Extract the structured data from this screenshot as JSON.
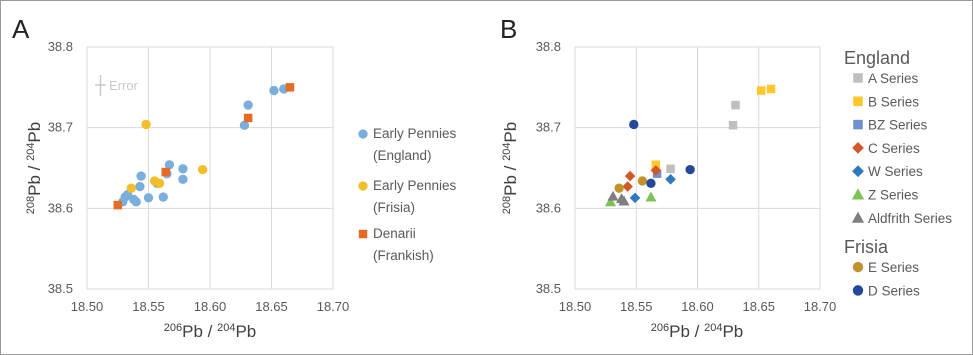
{
  "chart_data": [
    {
      "panel_label": "A",
      "type": "scatter",
      "xlabel": {
        "iso1": "206",
        "el1": "Pb / ",
        "iso2": "204",
        "el2": "Pb"
      },
      "ylabel": {
        "iso1": "208",
        "el1": "Pb / ",
        "iso2": "204",
        "el2": "Pb"
      },
      "xlim": [
        18.5,
        18.7
      ],
      "ylim": [
        38.5,
        38.8
      ],
      "x_ticks": [
        "18.50",
        "18.55",
        "18.60",
        "18.65",
        "18.70"
      ],
      "y_ticks": [
        "38.5",
        "38.6",
        "38.7",
        "38.8"
      ],
      "grid": true,
      "error_label": "Error",
      "legend_position": "right",
      "series": [
        {
          "name": [
            "Early Pennies",
            "(England)"
          ],
          "color": "#7aaedc",
          "marker": "circle",
          "points": [
            [
              18.529,
              38.608
            ],
            [
              18.531,
              38.614
            ],
            [
              18.533,
              38.617
            ],
            [
              18.538,
              38.611
            ],
            [
              18.54,
              38.608
            ],
            [
              18.543,
              38.627
            ],
            [
              18.544,
              38.64
            ],
            [
              18.55,
              38.613
            ],
            [
              18.557,
              38.631
            ],
            [
              18.562,
              38.614
            ],
            [
              18.565,
              38.643
            ],
            [
              18.567,
              38.654
            ],
            [
              18.578,
              38.636
            ],
            [
              18.578,
              38.649
            ],
            [
              18.628,
              38.703
            ],
            [
              18.631,
              38.728
            ],
            [
              18.652,
              38.746
            ],
            [
              18.66,
              38.748
            ]
          ]
        },
        {
          "name": [
            "Early Pennies",
            "(Frisia)"
          ],
          "color": "#f2be2a",
          "marker": "circle",
          "points": [
            [
              18.548,
              38.704
            ],
            [
              18.536,
              38.625
            ],
            [
              18.555,
              38.634
            ],
            [
              18.559,
              38.631
            ],
            [
              18.594,
              38.648
            ]
          ]
        },
        {
          "name": [
            "Denarii",
            "(Frankish)"
          ],
          "color": "#e46c24",
          "marker": "square",
          "points": [
            [
              18.525,
              38.604
            ],
            [
              18.564,
              38.645
            ],
            [
              18.631,
              38.712
            ],
            [
              18.665,
              38.75
            ]
          ]
        }
      ]
    },
    {
      "panel_label": "B",
      "type": "scatter",
      "xlabel": {
        "iso1": "206",
        "el1": "Pb / ",
        "iso2": "204",
        "el2": "Pb"
      },
      "ylabel": {
        "iso1": "208",
        "el1": "Pb / ",
        "iso2": "204",
        "el2": "Pb"
      },
      "xlim": [
        18.5,
        18.7
      ],
      "ylim": [
        38.5,
        38.8
      ],
      "x_ticks": [
        "18.50",
        "18.55",
        "18.60",
        "18.65",
        "18.70"
      ],
      "y_ticks": [
        "38.5",
        "38.6",
        "38.7",
        "38.8"
      ],
      "grid": true,
      "legend_position": "right",
      "legend_groups": [
        {
          "title": "England",
          "series": [
            "A Series",
            "B Series",
            "BZ Series",
            "C Series",
            "W Series",
            "Z Series",
            "Aldfrith Series"
          ]
        },
        {
          "title": "Frisia",
          "series": [
            "E Series",
            "D Series"
          ]
        }
      ],
      "series": [
        {
          "name": "A Series",
          "color": "#bfbfbf",
          "marker": "square",
          "points": [
            [
              18.578,
              38.649
            ],
            [
              18.629,
              38.703
            ],
            [
              18.631,
              38.728
            ]
          ]
        },
        {
          "name": "B Series",
          "color": "#ffc729",
          "marker": "square",
          "points": [
            [
              18.566,
              38.654
            ],
            [
              18.652,
              38.746
            ],
            [
              18.66,
              38.748
            ]
          ]
        },
        {
          "name": "BZ Series",
          "color": "#6f8fcf",
          "marker": "square",
          "points": [
            [
              18.567,
              38.643
            ]
          ]
        },
        {
          "name": "C Series",
          "color": "#d2582a",
          "marker": "diamond",
          "points": [
            [
              18.543,
              38.627
            ],
            [
              18.545,
              38.64
            ],
            [
              18.566,
              38.647
            ]
          ]
        },
        {
          "name": "W Series",
          "color": "#2e79bf",
          "marker": "diamond",
          "points": [
            [
              18.549,
              38.613
            ],
            [
              18.578,
              38.636
            ]
          ]
        },
        {
          "name": "Z Series",
          "color": "#7ec256",
          "marker": "triangle",
          "points": [
            [
              18.529,
              38.608
            ],
            [
              18.562,
              38.614
            ]
          ]
        },
        {
          "name": "Aldfrith Series",
          "color": "#7f7f7f",
          "marker": "triangle",
          "points": [
            [
              18.531,
              38.615
            ],
            [
              18.54,
              38.609
            ],
            [
              18.538,
              38.612
            ]
          ]
        },
        {
          "name": "E Series",
          "color": "#c2922e",
          "marker": "circle",
          "points": [
            [
              18.536,
              38.625
            ],
            [
              18.555,
              38.634
            ]
          ]
        },
        {
          "name": "D Series",
          "color": "#23489c",
          "marker": "circle",
          "points": [
            [
              18.548,
              38.704
            ],
            [
              18.562,
              38.631
            ],
            [
              18.594,
              38.648
            ]
          ]
        }
      ]
    }
  ]
}
